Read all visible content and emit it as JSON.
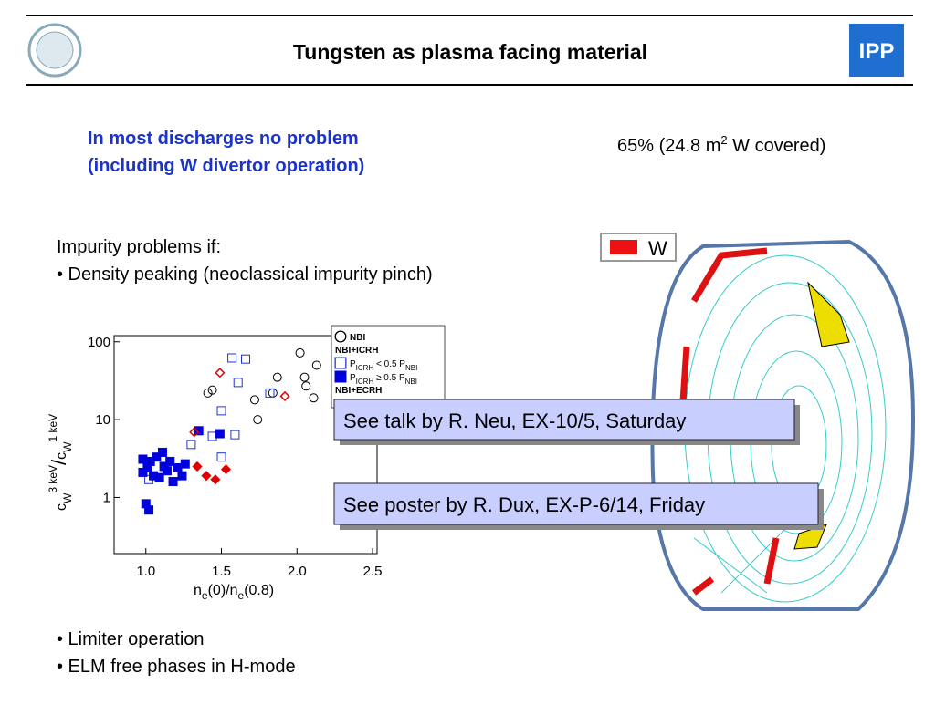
{
  "header": {
    "title": "Tungsten as plasma facing material"
  },
  "highlight": [
    "In most discharges no problem",
    "(including W divertor operation)"
  ],
  "coverage": [
    "65% (24.8 m",
    "2",
    " W covered)"
  ],
  "problems": {
    "heading": "Impurity problems if:",
    "bullets_top": [
      "• Density peaking (neoclassical impurity pinch)"
    ],
    "bullets_bottom": [
      "• Limiter operation",
      "• ELM free phases in H-mode"
    ]
  },
  "callouts": [
    "See talk by R. Neu, EX-10/5, Saturday",
    "See poster by R. Dux, EX-P-6/14, Friday"
  ],
  "figure": {
    "legend_label": "W"
  },
  "chart_data": {
    "type": "scatter",
    "log_y": true,
    "xlabel": [
      "n",
      "e",
      "(0)/n",
      "e",
      "(0.8)"
    ],
    "ylabel": [
      "c",
      "W",
      "3 keV",
      "/",
      "c",
      "W",
      "1 keV"
    ],
    "xlim": [
      0.79,
      2.53
    ],
    "ylim": [
      0.19,
      120
    ],
    "xticks": [
      {
        "value": 1,
        "label": "1.0"
      },
      {
        "value": 1.5,
        "label": "1.5"
      },
      {
        "value": 2,
        "label": "2.0"
      },
      {
        "value": 2.5,
        "label": "2.5"
      }
    ],
    "yticks": [
      1,
      10,
      100
    ],
    "legend_group": "NBI+ICRH",
    "legend_hidden": "NBI+ECRH",
    "series": [
      {
        "name": [
          "NBI"
        ],
        "marker": "circle-open",
        "color": "#000000",
        "x": [
          2.02,
          2.13,
          1.87,
          2.05,
          2.06,
          1.84,
          1.41,
          1.44,
          1.72,
          2.11,
          1.74
        ],
        "values": [
          72,
          50,
          35,
          35,
          27,
          22,
          22,
          24,
          18,
          19,
          10
        ]
      },
      {
        "name": [
          "P",
          "ICRH",
          "  < 0.5 P",
          "NBI"
        ],
        "marker": "square-open",
        "color": "#2233cc",
        "x": [
          1.57,
          1.66,
          1.61,
          1.82,
          1.5,
          1.44,
          1.3,
          1.5,
          1.02,
          1.59
        ],
        "values": [
          62,
          60,
          30,
          22,
          13,
          6.1,
          4.8,
          3.3,
          1.7,
          6.4
        ]
      },
      {
        "name": [
          "P",
          "ICRH",
          "  ≥ 0.5 P",
          "NBI"
        ],
        "marker": "square-filled",
        "color": "#0000dd",
        "x": [
          1.49,
          1.35,
          1.0,
          1.02,
          0.98,
          1.03,
          1.07,
          1.12,
          1.16,
          1.21,
          1.26,
          0.98,
          1.05,
          1.09,
          1.14,
          1.18,
          1.24,
          1.01,
          1.11
        ],
        "values": [
          6.6,
          7.2,
          0.83,
          0.69,
          3.1,
          2.9,
          3.3,
          2.5,
          2.9,
          2.4,
          2.7,
          2.1,
          1.9,
          1.8,
          2.2,
          1.6,
          1.9,
          2.4,
          3.8
        ]
      },
      {
        "name": null,
        "marker": "diamond-open",
        "color": "#dd0000",
        "x": [
          1.49,
          1.92,
          1.32
        ],
        "values": [
          40,
          20,
          6.9
        ]
      },
      {
        "name": null,
        "marker": "diamond-filled",
        "color": "#dd0000",
        "x": [
          1.34,
          1.4,
          1.46,
          1.53
        ],
        "values": [
          2.5,
          1.9,
          1.7,
          2.3
        ]
      }
    ]
  }
}
